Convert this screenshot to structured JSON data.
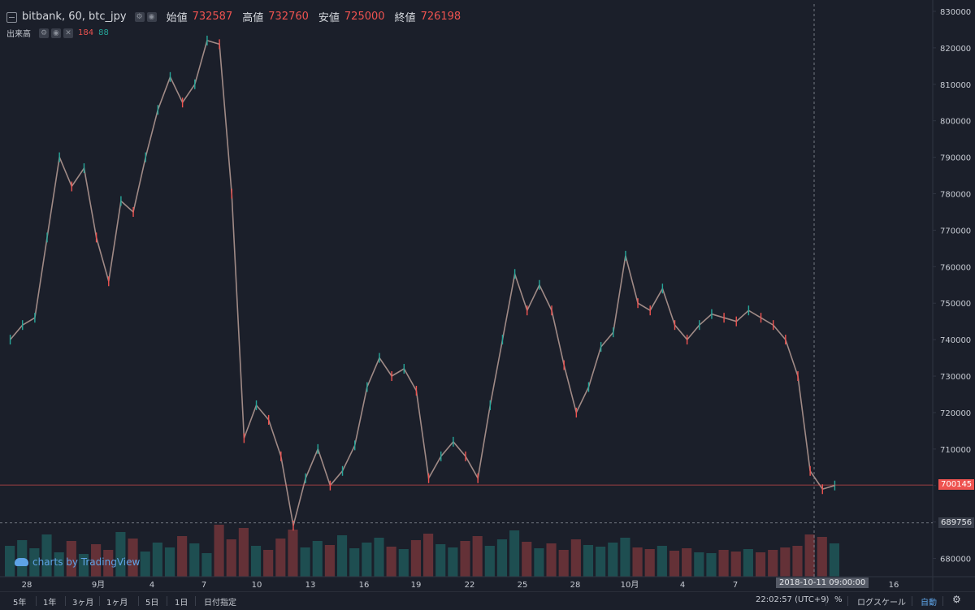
{
  "header": {
    "symbol": "bitbank, 60, btc_jpy",
    "open_label": "始値",
    "open": "732587",
    "high_label": "高値",
    "high": "732760",
    "low_label": "安値",
    "low": "725000",
    "close_label": "終値",
    "close": "726198"
  },
  "volume_legend": {
    "label": "出来高",
    "up_volume": "184",
    "down_volume": "88"
  },
  "branding": "charts by TradingView",
  "current_price_tag": "700145",
  "crosshair_price_tag": "689756",
  "crosshair_time_tag": "2018-10-11 09:00:00",
  "timeframes": [
    "5年",
    "1年",
    "3ヶ月",
    "1ヶ月",
    "5日",
    "1日",
    "日付指定"
  ],
  "bottom_right": {
    "clock": "22:02:57 (UTC+9)",
    "percent": "%",
    "log_scale": "ログスケール",
    "auto": "自動"
  },
  "colors": {
    "background": "#1b1f2a",
    "up": "#26a69a",
    "down": "#ef5350",
    "accent": "#5ea3e6"
  },
  "chart_data": {
    "type": "line",
    "title": "bitbank, 60, btc_jpy",
    "ylim": [
      675000,
      832000
    ],
    "y_ticks": [
      680000,
      690000,
      700000,
      710000,
      720000,
      730000,
      740000,
      750000,
      760000,
      770000,
      780000,
      790000,
      800000,
      810000,
      820000,
      830000
    ],
    "x_tick_labels": [
      "28",
      "9月",
      "4",
      "7",
      "10",
      "13",
      "16",
      "19",
      "22",
      "25",
      "28",
      "10月",
      "4",
      "7",
      "16"
    ],
    "series": [
      {
        "values": [
          740000,
          744000,
          746000,
          768000,
          790000,
          782000,
          787000,
          768000,
          756000,
          778000,
          775000,
          790000,
          803000,
          812000,
          805000,
          810000,
          822000,
          821000,
          780000,
          713000,
          722000,
          718000,
          708000,
          689000,
          702000,
          710000,
          700000,
          704000,
          711000,
          727000,
          735000,
          730000,
          732000,
          726000,
          702000,
          708000,
          712000,
          708000,
          702000,
          722000,
          740000,
          758000,
          748000,
          755000,
          748000,
          733000,
          720000,
          727000,
          738000,
          742000,
          763000,
          750000,
          748000,
          754000,
          744000,
          740000,
          744000,
          747000,
          746000,
          745000,
          748000,
          746000,
          744000,
          740000,
          730000,
          704000,
          699000,
          700000
        ]
      }
    ],
    "volume": {
      "values": [
        38,
        45,
        35,
        52,
        30,
        44,
        28,
        40,
        33,
        55,
        47,
        31,
        42,
        36,
        50,
        41,
        29,
        64,
        46,
        60,
        38,
        33,
        47,
        58,
        36,
        44,
        39,
        51,
        35,
        42,
        48,
        37,
        34,
        45,
        53,
        40,
        36,
        44,
        50,
        38,
        46,
        57,
        43,
        35,
        41,
        33,
        46,
        39,
        37,
        42,
        48,
        36,
        34,
        38,
        32,
        35,
        30,
        29,
        33,
        31,
        34,
        30,
        33,
        36,
        38,
        52,
        49,
        41
      ],
      "ylim": [
        0,
        120
      ]
    }
  }
}
